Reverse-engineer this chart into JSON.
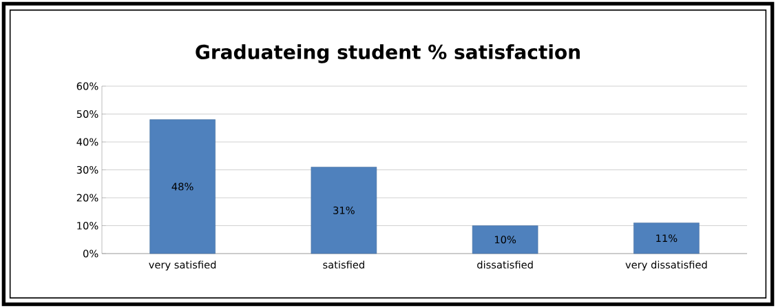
{
  "chart_data": {
    "type": "bar",
    "title": "Graduateing student % satisfaction",
    "categories": [
      "very satisfied",
      "satisfied",
      "dissatisfied",
      "very dissatisfied"
    ],
    "values": [
      48,
      31,
      10,
      11
    ],
    "value_labels": [
      "48%",
      "31%",
      "10%",
      "11%"
    ],
    "color": "#4f81bd",
    "ylim": [
      0,
      60
    ],
    "yticks": [
      {
        "value": 0,
        "label": "0%"
      },
      {
        "value": 10,
        "label": "10%"
      },
      {
        "value": 20,
        "label": "20%"
      },
      {
        "value": 30,
        "label": "30%"
      },
      {
        "value": 40,
        "label": "40%"
      },
      {
        "value": 50,
        "label": "50%"
      },
      {
        "value": 60,
        "label": "60%"
      }
    ],
    "grid": "y"
  }
}
